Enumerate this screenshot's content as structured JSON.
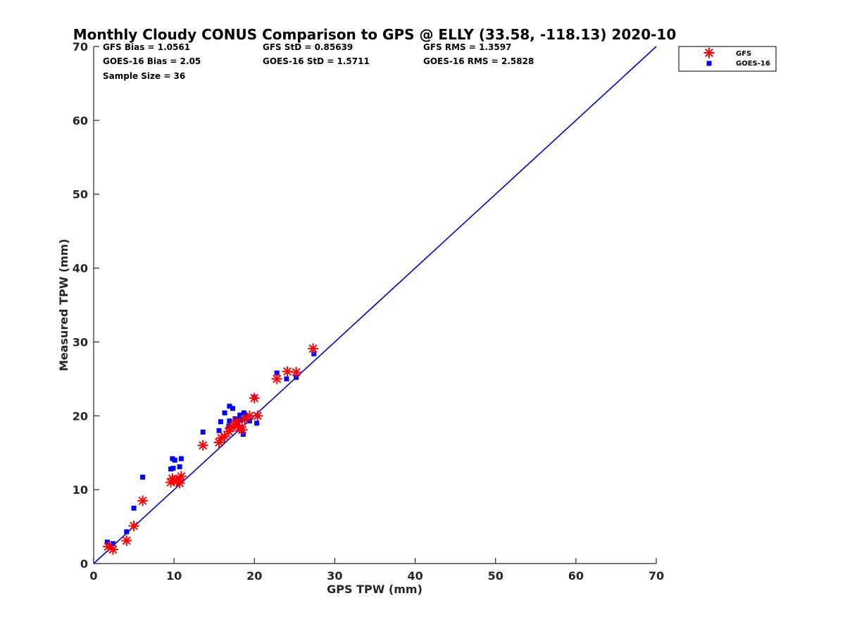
{
  "chart_data": {
    "type": "scatter",
    "title": "Monthly Cloudy CONUS Comparison to GPS @ ELLY (33.58, -118.13) 2020-10",
    "xlabel": "GPS TPW (mm)",
    "ylabel": "Measured TPW (mm)",
    "xlim": [
      0,
      70
    ],
    "ylim": [
      0,
      70
    ],
    "xticks": [
      "0",
      "10",
      "20",
      "30",
      "40",
      "50",
      "60",
      "70"
    ],
    "yticks": [
      "0",
      "10",
      "20",
      "30",
      "40",
      "50",
      "60",
      "70"
    ],
    "grid": false,
    "legend_position": "top-right",
    "stats": [
      "GFS Bias = 1.0561",
      "GFS StD = 0.85639",
      "GFS RMS = 1.3597",
      "GOES-16 Bias = 2.05",
      "GOES-16 StD = 1.5711",
      "GOES-16 RMS = 2.5828",
      "Sample Size = 36"
    ],
    "reference_line": {
      "x": [
        0,
        70
      ],
      "y": [
        0,
        70
      ],
      "color": "#0000cc"
    },
    "series": [
      {
        "name": "GFS",
        "marker": "asterisk",
        "color": "#ff0000",
        "points": [
          [
            1.8,
            2.3
          ],
          [
            2.4,
            1.9
          ],
          [
            4.1,
            3.1
          ],
          [
            5.0,
            5.1
          ],
          [
            6.1,
            8.5
          ],
          [
            9.6,
            11.0
          ],
          [
            9.8,
            11.5
          ],
          [
            10.0,
            11.2
          ],
          [
            10.3,
            11.3
          ],
          [
            10.7,
            10.9
          ],
          [
            10.9,
            11.8
          ],
          [
            13.6,
            16.0
          ],
          [
            15.6,
            16.4
          ],
          [
            15.9,
            17.0
          ],
          [
            16.3,
            17.2
          ],
          [
            16.8,
            17.9
          ],
          [
            17.0,
            18.3
          ],
          [
            17.5,
            18.7
          ],
          [
            17.8,
            19.2
          ],
          [
            18.1,
            18.4
          ],
          [
            18.5,
            18.1
          ],
          [
            18.8,
            19.5
          ],
          [
            19.4,
            20.0
          ],
          [
            20.0,
            22.4
          ],
          [
            20.4,
            20.0
          ],
          [
            22.8,
            25.0
          ],
          [
            24.1,
            26.0
          ],
          [
            25.2,
            25.9
          ],
          [
            27.3,
            29.1
          ]
        ]
      },
      {
        "name": "GOES-16",
        "marker": "square",
        "color": "#0000ff",
        "points": [
          [
            1.7,
            2.9
          ],
          [
            2.4,
            2.7
          ],
          [
            4.1,
            4.3
          ],
          [
            5.0,
            7.5
          ],
          [
            6.1,
            11.7
          ],
          [
            9.6,
            12.8
          ],
          [
            9.9,
            12.9
          ],
          [
            9.8,
            14.2
          ],
          [
            10.1,
            14.0
          ],
          [
            10.7,
            13.1
          ],
          [
            10.9,
            14.2
          ],
          [
            13.6,
            17.8
          ],
          [
            15.6,
            18.0
          ],
          [
            15.8,
            19.2
          ],
          [
            16.3,
            20.4
          ],
          [
            16.9,
            21.3
          ],
          [
            16.9,
            19.3
          ],
          [
            17.3,
            21.0
          ],
          [
            17.3,
            18.5
          ],
          [
            17.7,
            19.0
          ],
          [
            18.0,
            19.5
          ],
          [
            18.2,
            20.1
          ],
          [
            18.6,
            17.5
          ],
          [
            18.7,
            20.4
          ],
          [
            19.4,
            19.3
          ],
          [
            20.0,
            22.5
          ],
          [
            20.3,
            19.0
          ],
          [
            22.8,
            25.8
          ],
          [
            24.0,
            25.0
          ],
          [
            25.2,
            25.2
          ],
          [
            27.4,
            28.4
          ],
          [
            18.3,
            19.4
          ],
          [
            17.6,
            19.6
          ],
          [
            16.8,
            18.6
          ],
          [
            18.9,
            20.0
          ],
          [
            17.9,
            18.8
          ]
        ]
      }
    ]
  }
}
